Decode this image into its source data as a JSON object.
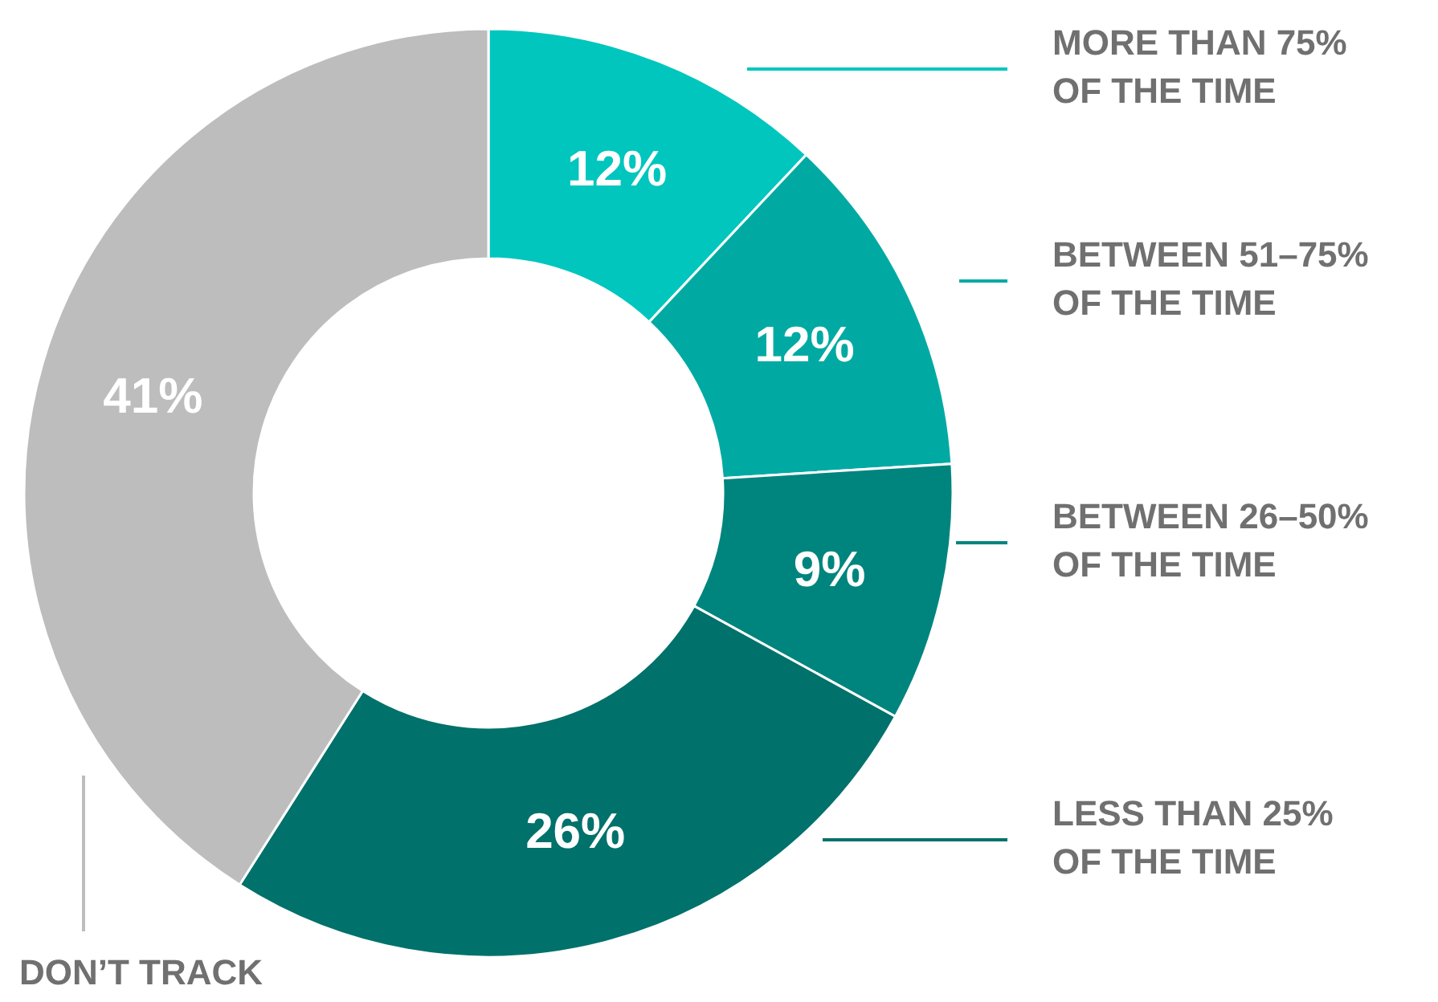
{
  "chart_data": {
    "type": "donut",
    "categories": [
      "MORE THAN 75%\nOF THE TIME",
      "BETWEEN 51–75%\nOF THE TIME",
      "BETWEEN 26–50%\nOF THE TIME",
      "LESS THAN 25%\nOF THE TIME",
      "DON’T TRACK"
    ],
    "values": [
      12,
      12,
      9,
      26,
      41
    ],
    "value_labels": [
      "12%",
      "12%",
      "9%",
      "26%",
      "41%"
    ],
    "colors": [
      "#00c6be",
      "#00aaa3",
      "#00857e",
      "#00716b",
      "#bdbdbd"
    ],
    "legend": "right"
  }
}
